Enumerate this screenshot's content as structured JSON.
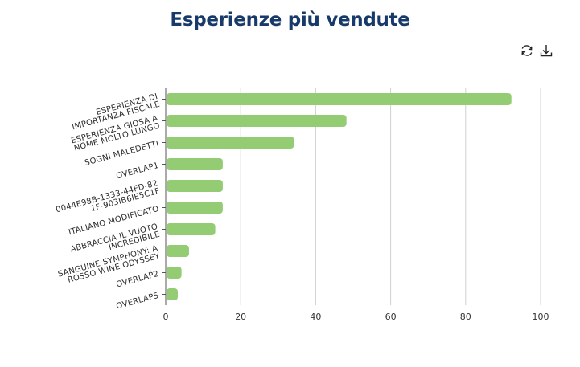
{
  "title": "Esperienze più vendute",
  "toolbar": {
    "refresh_icon": "refresh-icon",
    "download_icon": "download-icon"
  },
  "colors": {
    "bar": "#94cc74",
    "title": "#173a6a",
    "grid": "#d0d0d0",
    "axis": "#555555"
  },
  "chart_data": {
    "type": "bar",
    "orientation": "horizontal",
    "categories": [
      [
        "ESPERIENZA DI",
        "IMPORTANZA FISCALE"
      ],
      [
        "ESPERIENZA GIOSA A",
        "NOME MOLTO LUNGO"
      ],
      [
        "SOGNI MALEDETTI"
      ],
      [
        "OVERLAP1"
      ],
      [
        "0044E98B-1333-44FD-82",
        "1F-903IB6IE5C1F"
      ],
      [
        "ITALIANO MODIFICATO"
      ],
      [
        "ABBRACCIA IL VUOTO",
        "INCREDIBILE"
      ],
      [
        "SANGUINE SYMPHONY: A",
        "ROSSO WINE ODYSSEY"
      ],
      [
        "OVERLAP2"
      ],
      [
        "OVERLAP5"
      ]
    ],
    "values": [
      92,
      48,
      34,
      15,
      15,
      15,
      13,
      6,
      4,
      3
    ],
    "xlim": [
      0,
      100
    ],
    "xticks": [
      0,
      20,
      40,
      60,
      80,
      100
    ],
    "grid": true,
    "xlabel": "",
    "ylabel": ""
  }
}
